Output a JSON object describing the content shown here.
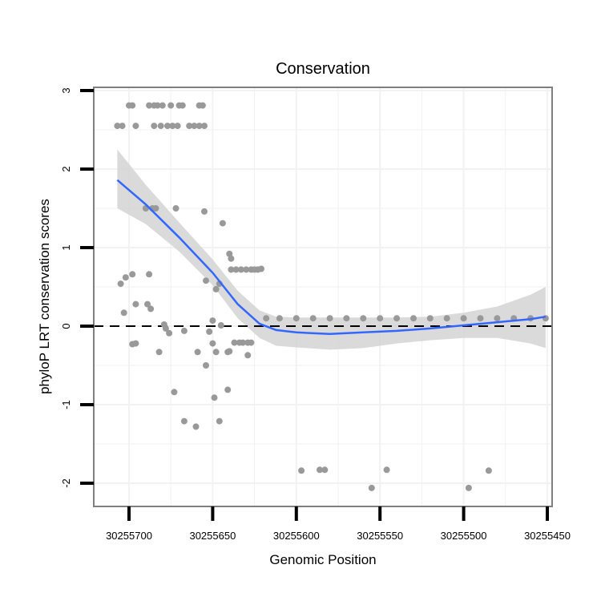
{
  "chart_data": {
    "type": "scatter",
    "title": "Conservation",
    "xlabel": "Genomic Position",
    "ylabel": "phyloP LRT conservation scores",
    "x_reversed": true,
    "xlim": [
      30255720,
      30255446
    ],
    "ylim": [
      -2.3,
      3.0
    ],
    "x_ticks": [
      30255700,
      30255650,
      30255600,
      30255550,
      30255500,
      30255450
    ],
    "x_tick_labels": [
      "30255700",
      "30255650",
      "30255600",
      "30255550",
      "30255500",
      "30255450"
    ],
    "y_ticks": [
      -2,
      -1,
      0,
      1,
      2,
      3
    ],
    "y_tick_labels": [
      "-2",
      "-1",
      "0",
      "1",
      "2",
      "3"
    ],
    "grid": true,
    "reference_line": {
      "y": 0,
      "style": "dashed",
      "color": "#000000"
    },
    "colors": {
      "points": "#999999",
      "smooth_line": "#3366ff",
      "ci_band": "#d3d3d3",
      "panel_border": "#7f7f7f",
      "grid": "#f2f2f2"
    },
    "points": [
      {
        "x": 30255700,
        "y": 2.81
      },
      {
        "x": 30255698,
        "y": 2.81
      },
      {
        "x": 30255688,
        "y": 2.81
      },
      {
        "x": 30255685,
        "y": 2.81
      },
      {
        "x": 30255683,
        "y": 2.81
      },
      {
        "x": 30255680,
        "y": 2.81
      },
      {
        "x": 30255675,
        "y": 2.81
      },
      {
        "x": 30255670,
        "y": 2.81
      },
      {
        "x": 30255668,
        "y": 2.81
      },
      {
        "x": 30255658,
        "y": 2.81
      },
      {
        "x": 30255656,
        "y": 2.81
      },
      {
        "x": 30255707,
        "y": 2.55
      },
      {
        "x": 30255704,
        "y": 2.55
      },
      {
        "x": 30255696,
        "y": 2.55
      },
      {
        "x": 30255685,
        "y": 2.55
      },
      {
        "x": 30255681,
        "y": 2.55
      },
      {
        "x": 30255677,
        "y": 2.55
      },
      {
        "x": 30255674,
        "y": 2.55
      },
      {
        "x": 30255671,
        "y": 2.55
      },
      {
        "x": 30255664,
        "y": 2.55
      },
      {
        "x": 30255661,
        "y": 2.55
      },
      {
        "x": 30255658,
        "y": 2.55
      },
      {
        "x": 30255655,
        "y": 2.55
      },
      {
        "x": 30255690,
        "y": 1.5
      },
      {
        "x": 30255686,
        "y": 1.5
      },
      {
        "x": 30255684,
        "y": 1.5
      },
      {
        "x": 30255672,
        "y": 1.5
      },
      {
        "x": 30255655,
        "y": 1.46
      },
      {
        "x": 30255644,
        "y": 1.31
      },
      {
        "x": 30255640,
        "y": 0.92
      },
      {
        "x": 30255639,
        "y": 0.86
      },
      {
        "x": 30255639,
        "y": 0.72
      },
      {
        "x": 30255636,
        "y": 0.72
      },
      {
        "x": 30255633,
        "y": 0.72
      },
      {
        "x": 30255630,
        "y": 0.72
      },
      {
        "x": 30255627,
        "y": 0.72
      },
      {
        "x": 30255625,
        "y": 0.72
      },
      {
        "x": 30255623,
        "y": 0.72
      },
      {
        "x": 30255621,
        "y": 0.73
      },
      {
        "x": 30255702,
        "y": 0.62
      },
      {
        "x": 30255698,
        "y": 0.66
      },
      {
        "x": 30255688,
        "y": 0.66
      },
      {
        "x": 30255705,
        "y": 0.54
      },
      {
        "x": 30255654,
        "y": 0.58
      },
      {
        "x": 30255646,
        "y": 0.54
      },
      {
        "x": 30255648,
        "y": 0.47
      },
      {
        "x": 30255696,
        "y": 0.28
      },
      {
        "x": 30255689,
        "y": 0.28
      },
      {
        "x": 30255687,
        "y": 0.22
      },
      {
        "x": 30255703,
        "y": 0.17
      },
      {
        "x": 30255650,
        "y": 0.07
      },
      {
        "x": 30255645,
        "y": 0.01
      },
      {
        "x": 30255679,
        "y": 0.02
      },
      {
        "x": 30255678,
        "y": -0.03
      },
      {
        "x": 30255676,
        "y": -0.09
      },
      {
        "x": 30255667,
        "y": -0.06
      },
      {
        "x": 30255652,
        "y": -0.07
      },
      {
        "x": 30255698,
        "y": -0.23
      },
      {
        "x": 30255696,
        "y": -0.22
      },
      {
        "x": 30255650,
        "y": -0.22
      },
      {
        "x": 30255682,
        "y": -0.33
      },
      {
        "x": 30255659,
        "y": -0.33
      },
      {
        "x": 30255648,
        "y": -0.33
      },
      {
        "x": 30255641,
        "y": -0.33
      },
      {
        "x": 30255640,
        "y": -0.32
      },
      {
        "x": 30255629,
        "y": -0.37
      },
      {
        "x": 30255637,
        "y": -0.21
      },
      {
        "x": 30255634,
        "y": -0.21
      },
      {
        "x": 30255632,
        "y": -0.21
      },
      {
        "x": 30255629,
        "y": -0.21
      },
      {
        "x": 30255627,
        "y": -0.21
      },
      {
        "x": 30255654,
        "y": -0.5
      },
      {
        "x": 30255673,
        "y": -0.84
      },
      {
        "x": 30255649,
        "y": -0.91
      },
      {
        "x": 30255641,
        "y": -0.81
      },
      {
        "x": 30255667,
        "y": -1.21
      },
      {
        "x": 30255660,
        "y": -1.28
      },
      {
        "x": 30255646,
        "y": -1.21
      },
      {
        "x": 30255618,
        "y": 0.1
      },
      {
        "x": 30255610,
        "y": 0.1
      },
      {
        "x": 30255600,
        "y": 0.1
      },
      {
        "x": 30255590,
        "y": 0.1
      },
      {
        "x": 30255580,
        "y": 0.1
      },
      {
        "x": 30255570,
        "y": 0.1
      },
      {
        "x": 30255560,
        "y": 0.1
      },
      {
        "x": 30255550,
        "y": 0.1
      },
      {
        "x": 30255540,
        "y": 0.1
      },
      {
        "x": 30255530,
        "y": 0.1
      },
      {
        "x": 30255520,
        "y": 0.1
      },
      {
        "x": 30255510,
        "y": 0.1
      },
      {
        "x": 30255500,
        "y": 0.1
      },
      {
        "x": 30255490,
        "y": 0.1
      },
      {
        "x": 30255480,
        "y": 0.1
      },
      {
        "x": 30255470,
        "y": 0.1
      },
      {
        "x": 30255460,
        "y": 0.1
      },
      {
        "x": 30255451,
        "y": 0.1
      },
      {
        "x": 30255597,
        "y": -1.84
      },
      {
        "x": 30255586,
        "y": -1.83
      },
      {
        "x": 30255583,
        "y": -1.83
      },
      {
        "x": 30255555,
        "y": -2.06
      },
      {
        "x": 30255546,
        "y": -1.83
      },
      {
        "x": 30255497,
        "y": -2.06
      },
      {
        "x": 30255485,
        "y": -1.84
      }
    ],
    "smooth": {
      "method": "loess",
      "x": [
        30255707,
        30255690,
        30255670,
        30255650,
        30255635,
        30255622,
        30255612,
        30255600,
        30255580,
        30255560,
        30255540,
        30255520,
        30255500,
        30255480,
        30255460,
        30255451
      ],
      "y": [
        1.86,
        1.55,
        1.13,
        0.68,
        0.28,
        0.03,
        -0.05,
        -0.08,
        -0.1,
        -0.08,
        -0.06,
        -0.03,
        0.01,
        0.05,
        0.09,
        0.12
      ],
      "lower": [
        1.5,
        1.3,
        0.95,
        0.52,
        0.1,
        -0.15,
        -0.25,
        -0.27,
        -0.3,
        -0.28,
        -0.22,
        -0.18,
        -0.15,
        -0.15,
        -0.22,
        -0.28
      ],
      "upper": [
        2.25,
        1.8,
        1.32,
        0.85,
        0.45,
        0.2,
        0.12,
        0.11,
        0.11,
        0.11,
        0.11,
        0.12,
        0.17,
        0.25,
        0.4,
        0.5
      ]
    }
  }
}
